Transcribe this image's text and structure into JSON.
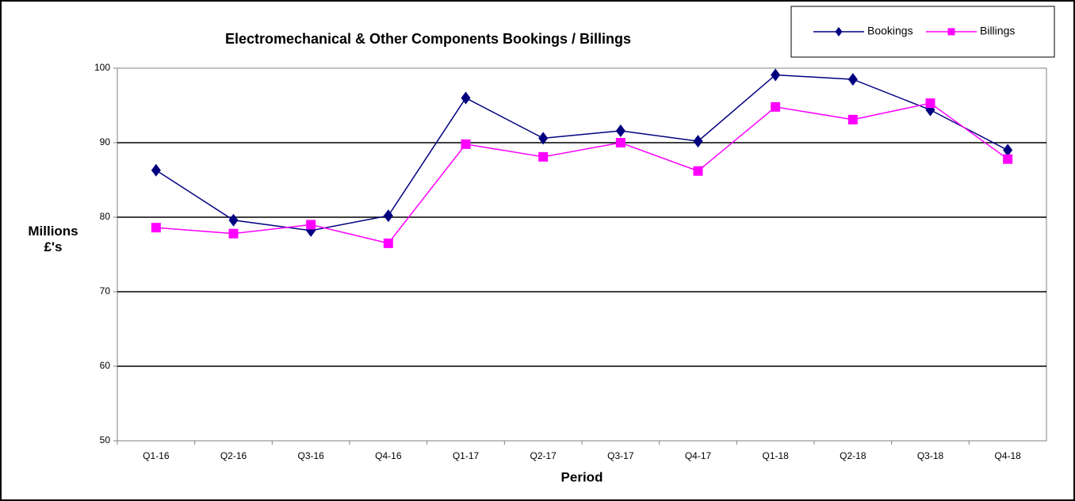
{
  "chart_data": {
    "type": "line",
    "title": "Electromechanical & Other Components Bookings / Billings",
    "x_label": "Period",
    "y_label": "Millions £'s",
    "categories": [
      "Q1-16",
      "Q2-16",
      "Q3-16",
      "Q4-16",
      "Q1-17",
      "Q2-17",
      "Q3-17",
      "Q4-17",
      "Q1-18",
      "Q2-18",
      "Q3-18",
      "Q4-18"
    ],
    "series": [
      {
        "name": "Bookings",
        "color": "#000080",
        "marker": "diamond",
        "values": [
          86.3,
          79.6,
          78.2,
          80.2,
          96.0,
          90.6,
          91.6,
          90.2,
          99.1,
          98.5,
          94.4,
          89.0
        ]
      },
      {
        "name": "Billings",
        "color": "#ff00ff",
        "marker": "square",
        "values": [
          78.6,
          77.8,
          79.0,
          76.5,
          89.8,
          88.1,
          90.0,
          86.2,
          94.8,
          93.1,
          95.3,
          87.8
        ]
      }
    ],
    "ylim": [
      50,
      100
    ],
    "yticks": [
      50,
      60,
      70,
      80,
      90,
      100
    ],
    "grid": true,
    "legend": "top-right"
  }
}
